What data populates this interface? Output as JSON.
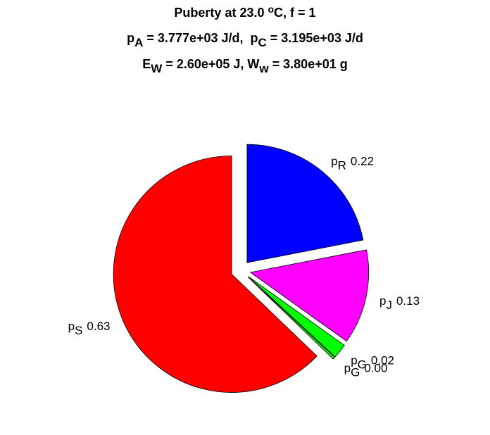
{
  "chart_data": {
    "type": "pie",
    "title": [
      [
        {
          "text": "Puberty at 23.0 "
        },
        {
          "text": "o",
          "shift": "super"
        },
        {
          "text": "C, f = 1"
        }
      ],
      [
        {
          "text": "p"
        },
        {
          "text": "A",
          "shift": "sub"
        },
        {
          "text": " = 3.777e+03 J/d,  p"
        },
        {
          "text": "C",
          "shift": "sub"
        },
        {
          "text": " = 3.195e+03 J/d"
        }
      ],
      [
        {
          "text": "E"
        },
        {
          "text": "W",
          "shift": "sub"
        },
        {
          "text": " = 2.60e+05 J, W"
        },
        {
          "text": "w",
          "shift": "sub"
        },
        {
          "text": " = 3.80e+01 g"
        }
      ]
    ],
    "categories": [
      {
        "base": "p",
        "sub": "R"
      },
      {
        "base": "p",
        "sub": "J"
      },
      {
        "base": "p",
        "sub": "G"
      },
      {
        "base": "p",
        "sub": "G"
      },
      {
        "base": "p",
        "sub": "S"
      }
    ],
    "values": [
      0.22,
      0.13,
      0.02,
      0.003,
      0.63
    ],
    "value_labels": [
      "0.22",
      "0.13",
      "0.02",
      "0.00",
      "0.63"
    ],
    "colors": [
      "#0000ff",
      "#ff00ff",
      "#00ff00",
      "#00ff00",
      "#ff0000"
    ],
    "exploded": true
  }
}
